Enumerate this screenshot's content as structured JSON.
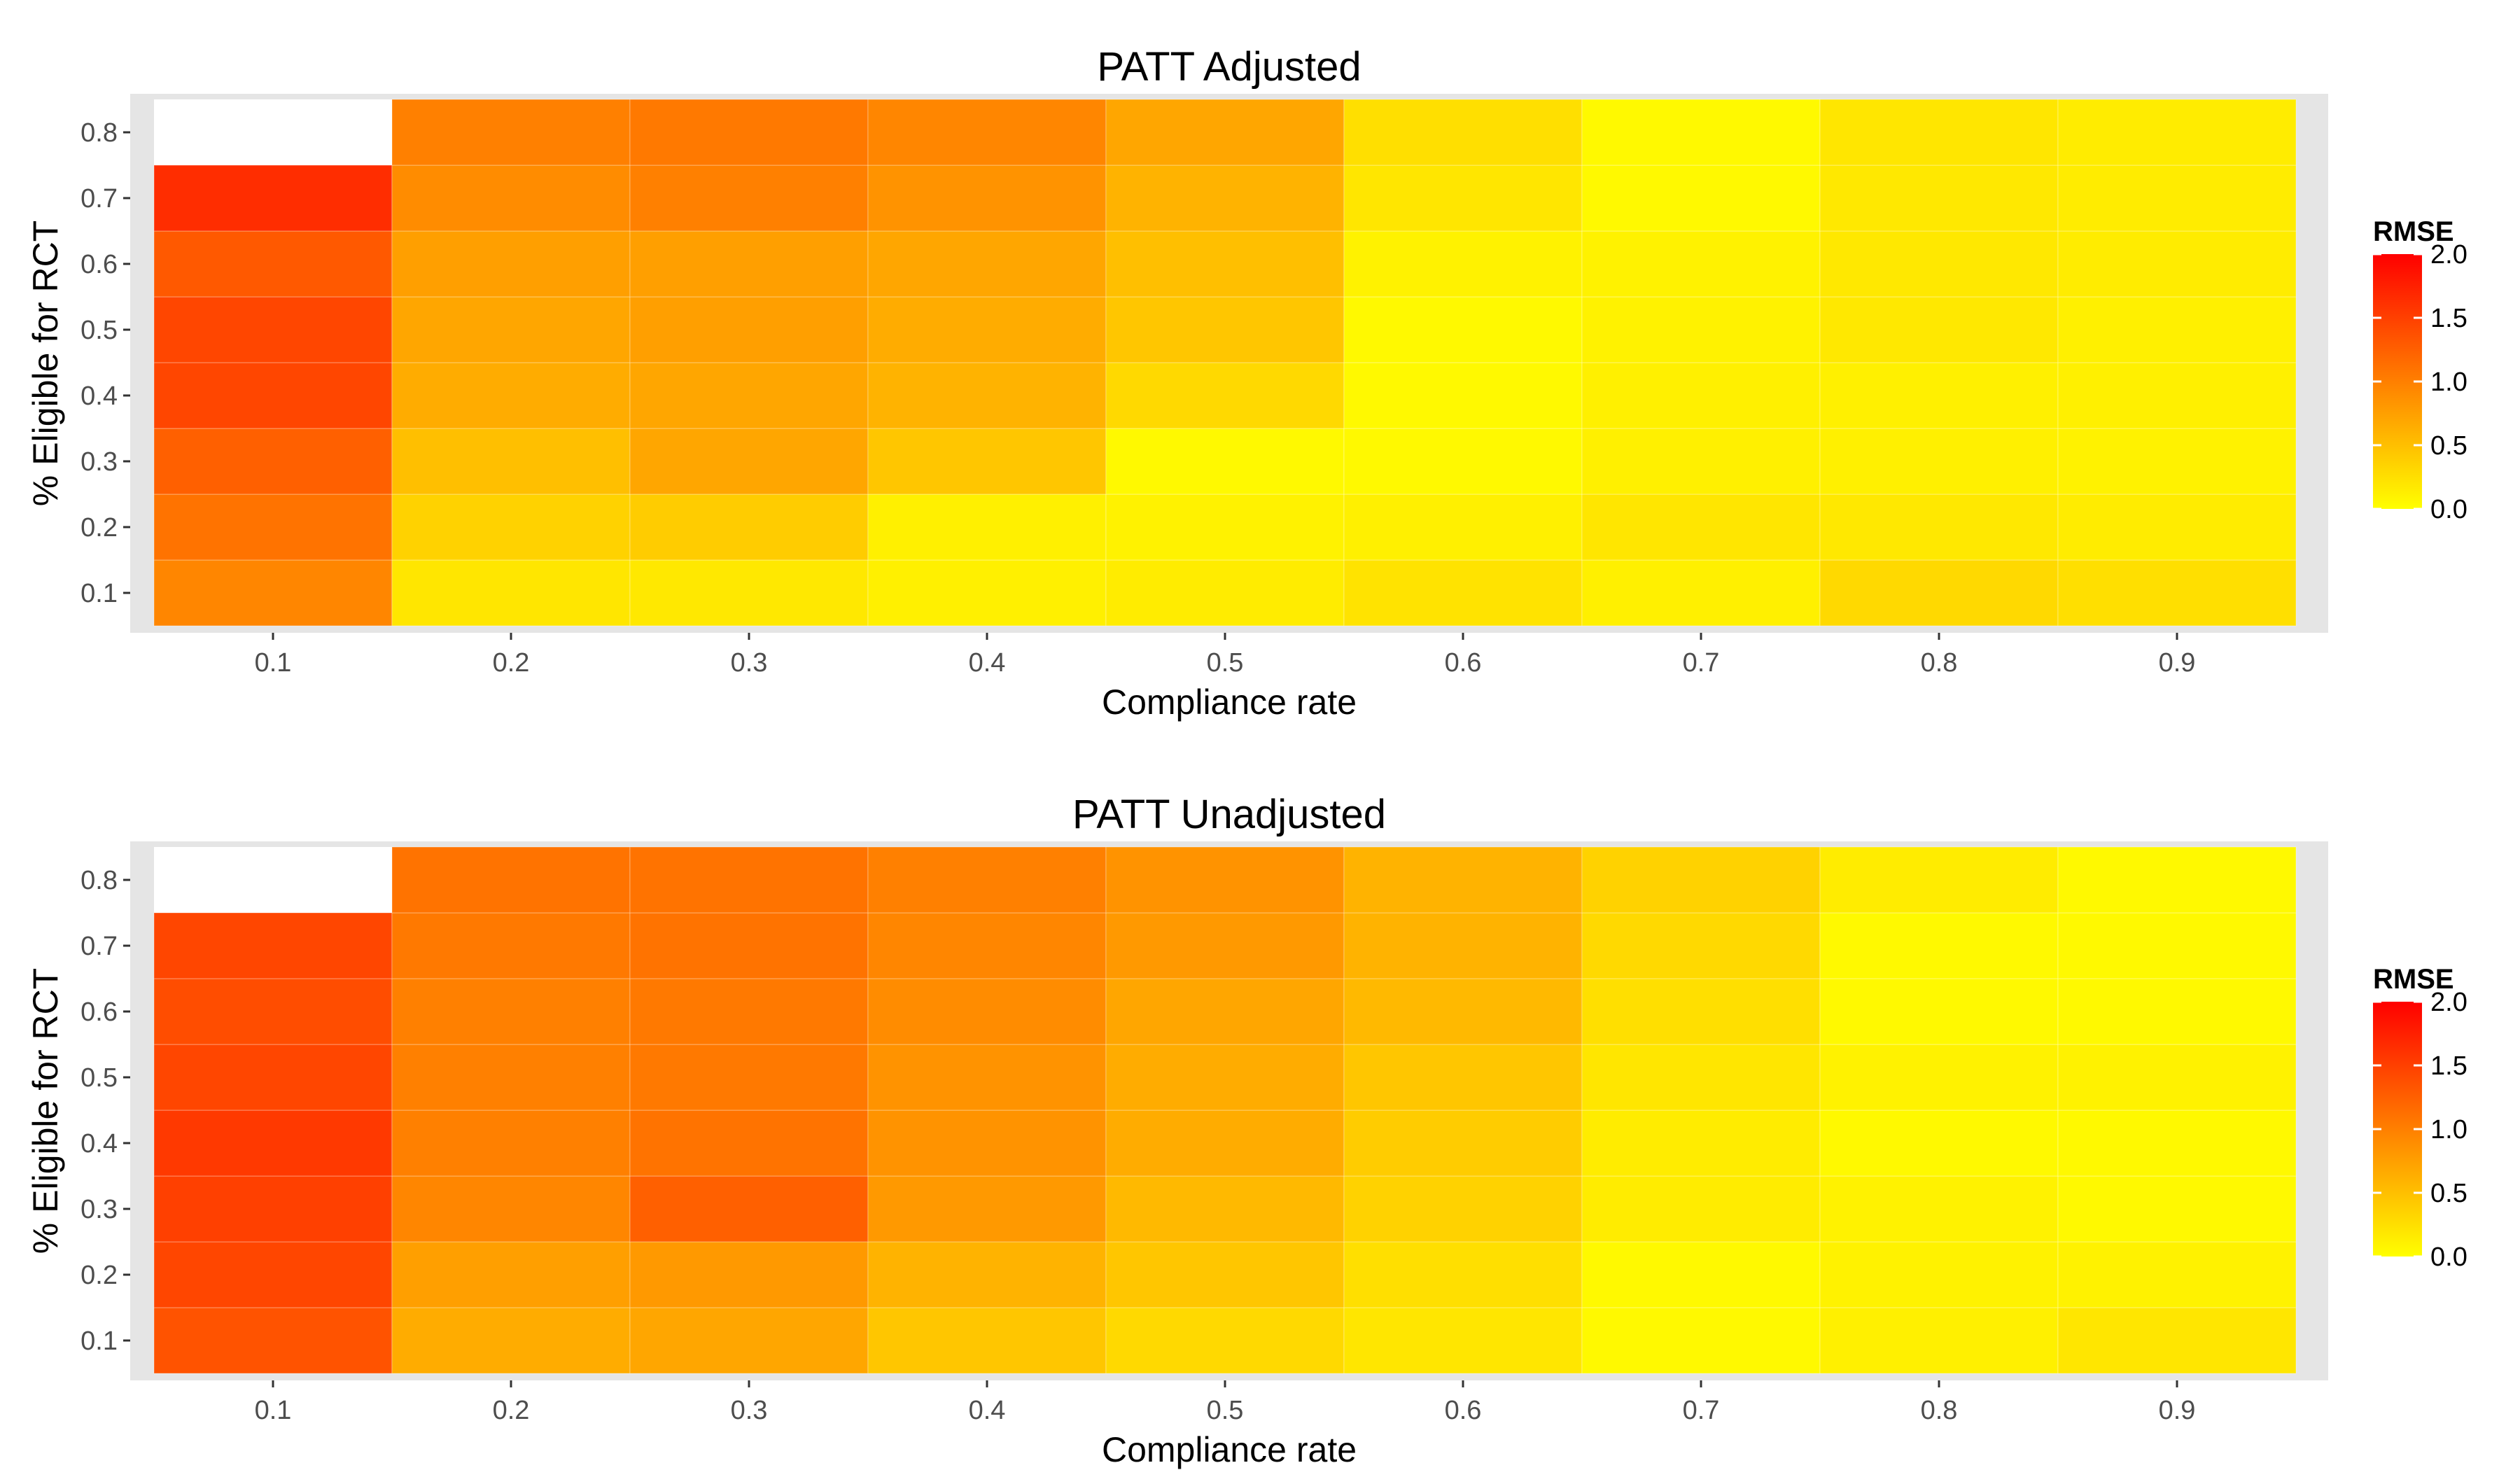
{
  "chart_data": [
    {
      "type": "heatmap",
      "title": "PATT Adjusted",
      "xlabel": "Compliance rate",
      "ylabel": "% Eligible for RCT",
      "x": [
        0.1,
        0.2,
        0.3,
        0.4,
        0.5,
        0.6,
        0.7,
        0.8,
        0.9
      ],
      "y": [
        0.1,
        0.2,
        0.3,
        0.4,
        0.5,
        0.6,
        0.7,
        0.8
      ],
      "x_tick_labels": [
        "0.1",
        "0.2",
        "0.3",
        "0.4",
        "0.5",
        "0.6",
        "0.7",
        "0.8",
        "0.9"
      ],
      "y_tick_labels": [
        "0.1",
        "0.2",
        "0.3",
        "0.4",
        "0.5",
        "0.6",
        "0.7",
        "0.8"
      ],
      "values": [
        [
          0.95,
          0.2,
          0.18,
          0.12,
          0.15,
          0.22,
          0.12,
          0.3,
          0.25
        ],
        [
          1.1,
          0.35,
          0.4,
          0.12,
          0.1,
          0.12,
          0.2,
          0.18,
          0.15
        ],
        [
          1.25,
          0.5,
          0.7,
          0.45,
          0.05,
          0.05,
          0.12,
          0.12,
          0.1
        ],
        [
          1.45,
          0.65,
          0.7,
          0.6,
          0.3,
          0.05,
          0.12,
          0.12,
          0.12
        ],
        [
          1.45,
          0.7,
          0.75,
          0.65,
          0.45,
          0.05,
          0.1,
          0.18,
          0.12
        ],
        [
          1.3,
          0.75,
          0.75,
          0.7,
          0.5,
          0.1,
          0.1,
          0.18,
          0.15
        ],
        [
          1.65,
          0.9,
          1.0,
          0.85,
          0.6,
          0.2,
          0.05,
          0.18,
          0.15
        ],
        [
          null,
          1.0,
          1.05,
          0.95,
          0.7,
          0.25,
          0.05,
          0.2,
          0.15
        ]
      ],
      "legend": {
        "title": "RMSE",
        "ticks": [
          "0.0",
          "0.5",
          "1.0",
          "1.5",
          "2.0"
        ],
        "range": [
          0,
          2
        ],
        "placement": "right"
      },
      "colors": {
        "low": "#ffff00",
        "high": "#ff0000",
        "na": "#ffffff",
        "panel": "#e5e5e5",
        "grid": "#ffffff"
      }
    },
    {
      "type": "heatmap",
      "title": "PATT Unadjusted",
      "xlabel": "Compliance rate",
      "ylabel": "% Eligible for RCT",
      "x": [
        0.1,
        0.2,
        0.3,
        0.4,
        0.5,
        0.6,
        0.7,
        0.8,
        0.9
      ],
      "y": [
        0.1,
        0.2,
        0.3,
        0.4,
        0.5,
        0.6,
        0.7,
        0.8
      ],
      "x_tick_labels": [
        "0.1",
        "0.2",
        "0.3",
        "0.4",
        "0.5",
        "0.6",
        "0.7",
        "0.8",
        "0.9"
      ],
      "y_tick_labels": [
        "0.1",
        "0.2",
        "0.3",
        "0.4",
        "0.5",
        "0.6",
        "0.7",
        "0.8"
      ],
      "values": [
        [
          1.35,
          0.65,
          0.7,
          0.45,
          0.3,
          0.2,
          0.05,
          0.12,
          0.2
        ],
        [
          1.45,
          0.75,
          0.8,
          0.6,
          0.45,
          0.25,
          0.05,
          0.1,
          0.1
        ],
        [
          1.5,
          0.95,
          1.25,
          0.8,
          0.55,
          0.35,
          0.15,
          0.1,
          0.05
        ],
        [
          1.55,
          1.0,
          1.1,
          0.85,
          0.65,
          0.4,
          0.15,
          0.05,
          0.05
        ],
        [
          1.45,
          1.0,
          1.05,
          0.85,
          0.65,
          0.45,
          0.2,
          0.1,
          0.1
        ],
        [
          1.4,
          1.0,
          1.05,
          0.9,
          0.7,
          0.55,
          0.25,
          0.05,
          0.05
        ],
        [
          1.45,
          1.05,
          1.1,
          0.95,
          0.8,
          0.6,
          0.3,
          0.05,
          0.05
        ],
        [
          null,
          1.1,
          1.1,
          1.0,
          0.85,
          0.6,
          0.35,
          0.15,
          0.05
        ]
      ],
      "legend": {
        "title": "RMSE",
        "ticks": [
          "0.0",
          "0.5",
          "1.0",
          "1.5",
          "2.0"
        ],
        "range": [
          0,
          2
        ],
        "placement": "right"
      },
      "colors": {
        "low": "#ffff00",
        "high": "#ff0000",
        "na": "#ffffff",
        "panel": "#e5e5e5",
        "grid": "#ffffff"
      }
    }
  ]
}
